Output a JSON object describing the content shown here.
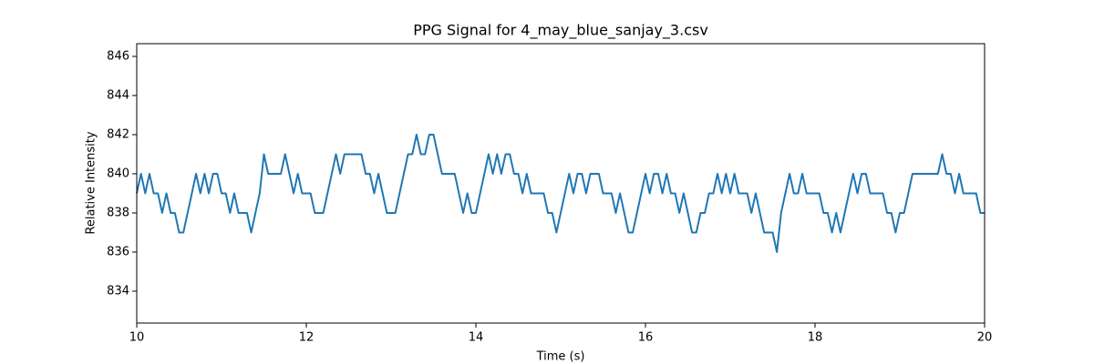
{
  "chart_data": {
    "type": "line",
    "title": "PPG Signal for 4_may_blue_sanjay_3.csv",
    "x_label": "Time (s)",
    "y_label": "Relative Intensity",
    "color": "#1f77b4",
    "xlim": [
      10,
      20
    ],
    "xticks": [
      10,
      12,
      14,
      16,
      18,
      20
    ],
    "ylim": [
      832.37,
      846.65
    ],
    "yticks": [
      834,
      836,
      838,
      840,
      842,
      844,
      846
    ],
    "x": [
      10.0,
      10.05,
      10.1,
      10.15,
      10.2,
      10.25,
      10.3,
      10.35,
      10.4,
      10.45,
      10.5,
      10.55,
      10.6,
      10.65,
      10.7,
      10.75,
      10.8,
      10.85,
      10.9,
      10.95,
      11.0,
      11.05,
      11.1,
      11.15,
      11.2,
      11.25,
      11.3,
      11.35,
      11.4,
      11.45,
      11.5,
      11.55,
      11.6,
      11.65,
      11.7,
      11.75,
      11.8,
      11.85,
      11.9,
      11.95,
      12.0,
      12.05,
      12.1,
      12.15,
      12.2,
      12.25,
      12.3,
      12.35,
      12.4,
      12.45,
      12.5,
      12.55,
      12.6,
      12.65,
      12.7,
      12.75,
      12.8,
      12.85,
      12.9,
      12.95,
      13.0,
      13.05,
      13.1,
      13.15,
      13.2,
      13.25,
      13.3,
      13.35,
      13.4,
      13.45,
      13.5,
      13.55,
      13.6,
      13.65,
      13.7,
      13.75,
      13.8,
      13.85,
      13.9,
      13.95,
      14.0,
      14.05,
      14.1,
      14.15,
      14.2,
      14.25,
      14.3,
      14.35,
      14.4,
      14.45,
      14.5,
      14.55,
      14.6,
      14.65,
      14.7,
      14.75,
      14.8,
      14.85,
      14.9,
      14.95,
      15.0,
      15.05,
      15.1,
      15.15,
      15.2,
      15.25,
      15.3,
      15.35,
      15.4,
      15.45,
      15.5,
      15.55,
      15.6,
      15.65,
      15.7,
      15.75,
      15.8,
      15.85,
      15.9,
      15.95,
      16.0,
      16.05,
      16.1,
      16.15,
      16.2,
      16.25,
      16.3,
      16.35,
      16.4,
      16.45,
      16.5,
      16.55,
      16.6,
      16.65,
      16.7,
      16.75,
      16.8,
      16.85,
      16.9,
      16.95,
      17.0,
      17.05,
      17.1,
      17.15,
      17.2,
      17.25,
      17.3,
      17.35,
      17.4,
      17.45,
      17.5,
      17.55,
      17.6,
      17.65,
      17.7,
      17.75,
      17.8,
      17.85,
      17.9,
      17.95,
      18.0,
      18.05,
      18.1,
      18.15,
      18.2,
      18.25,
      18.3,
      18.35,
      18.4,
      18.45,
      18.5,
      18.55,
      18.6,
      18.65,
      18.7,
      18.75,
      18.8,
      18.85,
      18.9,
      18.95,
      19.0,
      19.05,
      19.1,
      19.15,
      19.2,
      19.25,
      19.3,
      19.35,
      19.4,
      19.45,
      19.5,
      19.55,
      19.6,
      19.65,
      19.7,
      19.75,
      19.8,
      19.85,
      19.9,
      19.95,
      20.0
    ],
    "values": [
      839,
      840,
      839,
      840,
      839,
      839,
      838,
      839,
      838,
      838,
      837,
      837,
      838,
      839,
      840,
      839,
      840,
      839,
      840,
      840,
      839,
      839,
      838,
      839,
      838,
      838,
      838,
      837,
      838,
      839,
      841,
      840,
      840,
      840,
      840,
      841,
      840,
      839,
      840,
      839,
      839,
      839,
      838,
      838,
      838,
      839,
      840,
      841,
      840,
      841,
      841,
      841,
      841,
      841,
      840,
      840,
      839,
      840,
      839,
      838,
      838,
      838,
      839,
      840,
      841,
      841,
      842,
      841,
      841,
      842,
      842,
      841,
      840,
      840,
      840,
      840,
      839,
      838,
      839,
      838,
      838,
      839,
      840,
      841,
      840,
      841,
      840,
      841,
      841,
      840,
      840,
      839,
      840,
      839,
      839,
      839,
      839,
      838,
      838,
      837,
      838,
      839,
      840,
      839,
      840,
      840,
      839,
      840,
      840,
      840,
      839,
      839,
      839,
      838,
      839,
      838,
      837,
      837,
      838,
      839,
      840,
      839,
      840,
      840,
      839,
      840,
      839,
      839,
      838,
      839,
      838,
      837,
      837,
      838,
      838,
      839,
      839,
      840,
      839,
      840,
      839,
      840,
      839,
      839,
      839,
      838,
      839,
      838,
      837,
      837,
      837,
      836,
      838,
      839,
      840,
      839,
      839,
      840,
      839,
      839,
      839,
      839,
      838,
      838,
      837,
      838,
      837,
      838,
      839,
      840,
      839,
      840,
      840,
      839,
      839,
      839,
      839,
      838,
      838,
      837,
      838,
      838,
      839,
      840,
      840,
      840,
      840,
      840,
      840,
      840,
      841,
      840,
      840,
      839,
      840,
      839,
      839,
      839,
      839,
      838,
      838
    ]
  }
}
